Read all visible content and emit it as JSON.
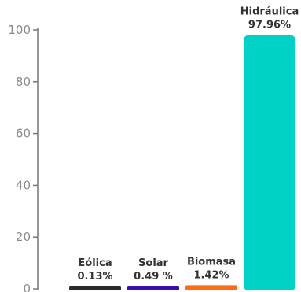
{
  "chart_data": {
    "type": "bar",
    "categories": [
      "Eólica",
      "Solar",
      "Biomasa",
      "Hidráulica"
    ],
    "value_labels": [
      "0.13%",
      "0.49 %",
      "1.42%",
      "97.96%"
    ],
    "values": [
      0.13,
      0.49,
      1.42,
      97.96
    ],
    "colors": [
      "#2b2b2b",
      "#3d0ea8",
      "#ff6a13",
      "#00d1c5"
    ],
    "ylim": [
      0,
      100
    ],
    "yticks": [
      0,
      20,
      40,
      60,
      80,
      100
    ],
    "ytick_labels": [
      "0",
      "20",
      "40",
      "60",
      "80",
      "100"
    ],
    "title": "",
    "xlabel": "",
    "ylabel": "",
    "grid": false,
    "legend": "none"
  }
}
